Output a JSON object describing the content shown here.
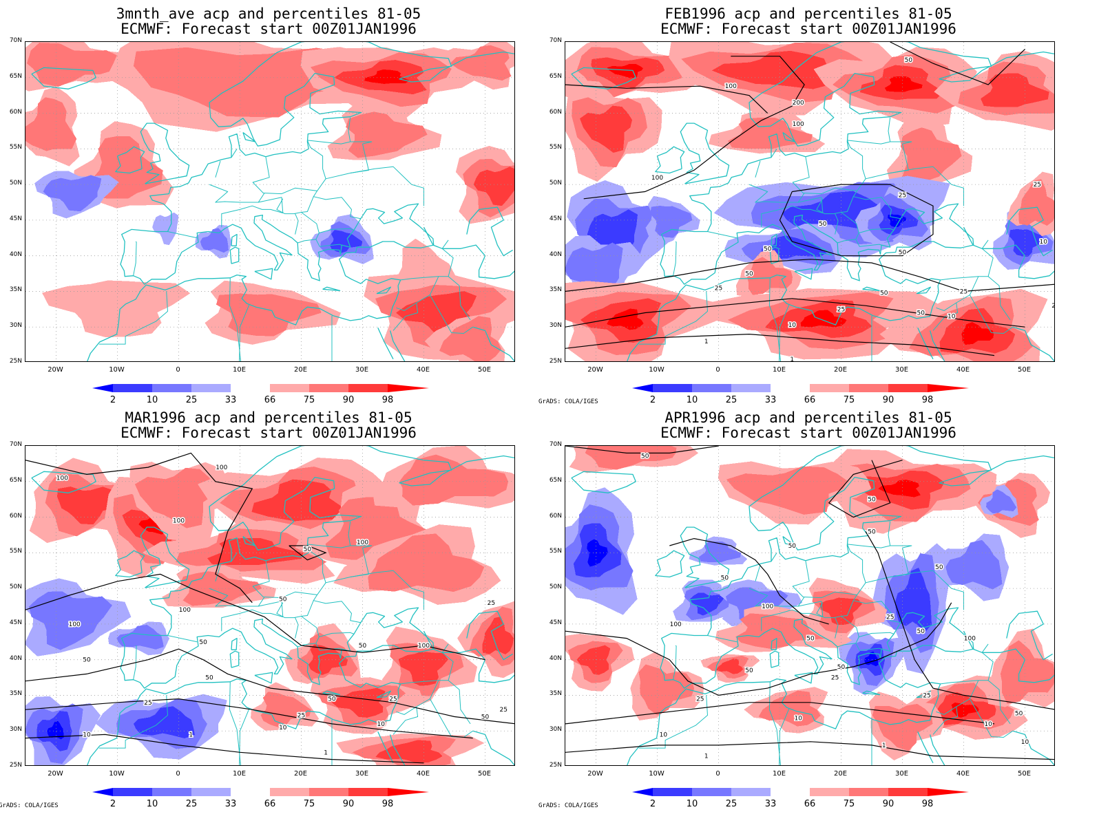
{
  "panels": [
    {
      "title1": "3mnth_ave acp and percentiles 81-05",
      "title2": "ECMWF: Forecast start 00Z01JAN1996",
      "credit": "",
      "variant": 0
    },
    {
      "title1": "FEB1996 acp and percentiles 81-05",
      "title2": "ECMWF: Forecast start 00Z01JAN1996",
      "credit": "GrADS: COLA/IGES",
      "variant": 1
    },
    {
      "title1": "MAR1996 acp and percentiles 81-05",
      "title2": "ECMWF: Forecast start 00Z01JAN1996",
      "credit": "GrADS: COLA/IGES",
      "variant": 2
    },
    {
      "title1": "APR1996 acp and percentiles 81-05",
      "title2": "ECMWF: Forecast start 00Z01JAN1996",
      "credit": "GrADS: COLA/IGES",
      "variant": 3
    }
  ],
  "lat_labels": [
    "70N",
    "65N",
    "60N",
    "55N",
    "50N",
    "45N",
    "40N",
    "35N",
    "30N",
    "25N"
  ],
  "lon_labels": [
    "20W",
    "10W",
    "0",
    "10E",
    "20E",
    "30E",
    "40E",
    "50E"
  ],
  "colorbar_labels": [
    "2",
    "10",
    "25",
    "33",
    "66",
    "75",
    "90",
    "98"
  ],
  "colorbar_colors": [
    "#0000ff",
    "#3b3bff",
    "#7777ff",
    "#aaaaff",
    "#ffffff",
    "#ffaaaa",
    "#ff7777",
    "#ff3b3b",
    "#ff0000"
  ],
  "colors": {
    "coast": "#20c0c0",
    "contour": "#000000"
  },
  "contour_labels": {
    "feb": [
      "200",
      "100",
      "100",
      "100",
      "50",
      "50",
      "50",
      "50",
      "50",
      "50",
      "25",
      "25",
      "25",
      "25",
      "25",
      "10",
      "10",
      "10",
      "1",
      "1",
      "50",
      "25"
    ],
    "mar": [
      "100",
      "100",
      "100",
      "100",
      "100",
      "100",
      "50",
      "50",
      "50",
      "50",
      "50",
      "50",
      "50",
      "25",
      "25",
      "25",
      "25",
      "10",
      "10",
      "10",
      "1",
      "1",
      "25",
      "50",
      "100"
    ],
    "apr": [
      "50",
      "50",
      "50",
      "50",
      "50",
      "50",
      "50",
      "50",
      "50",
      "50",
      "100",
      "100",
      "100",
      "25",
      "25",
      "25",
      "25",
      "10",
      "10",
      "10",
      "1",
      "1",
      "50",
      "10"
    ]
  }
}
